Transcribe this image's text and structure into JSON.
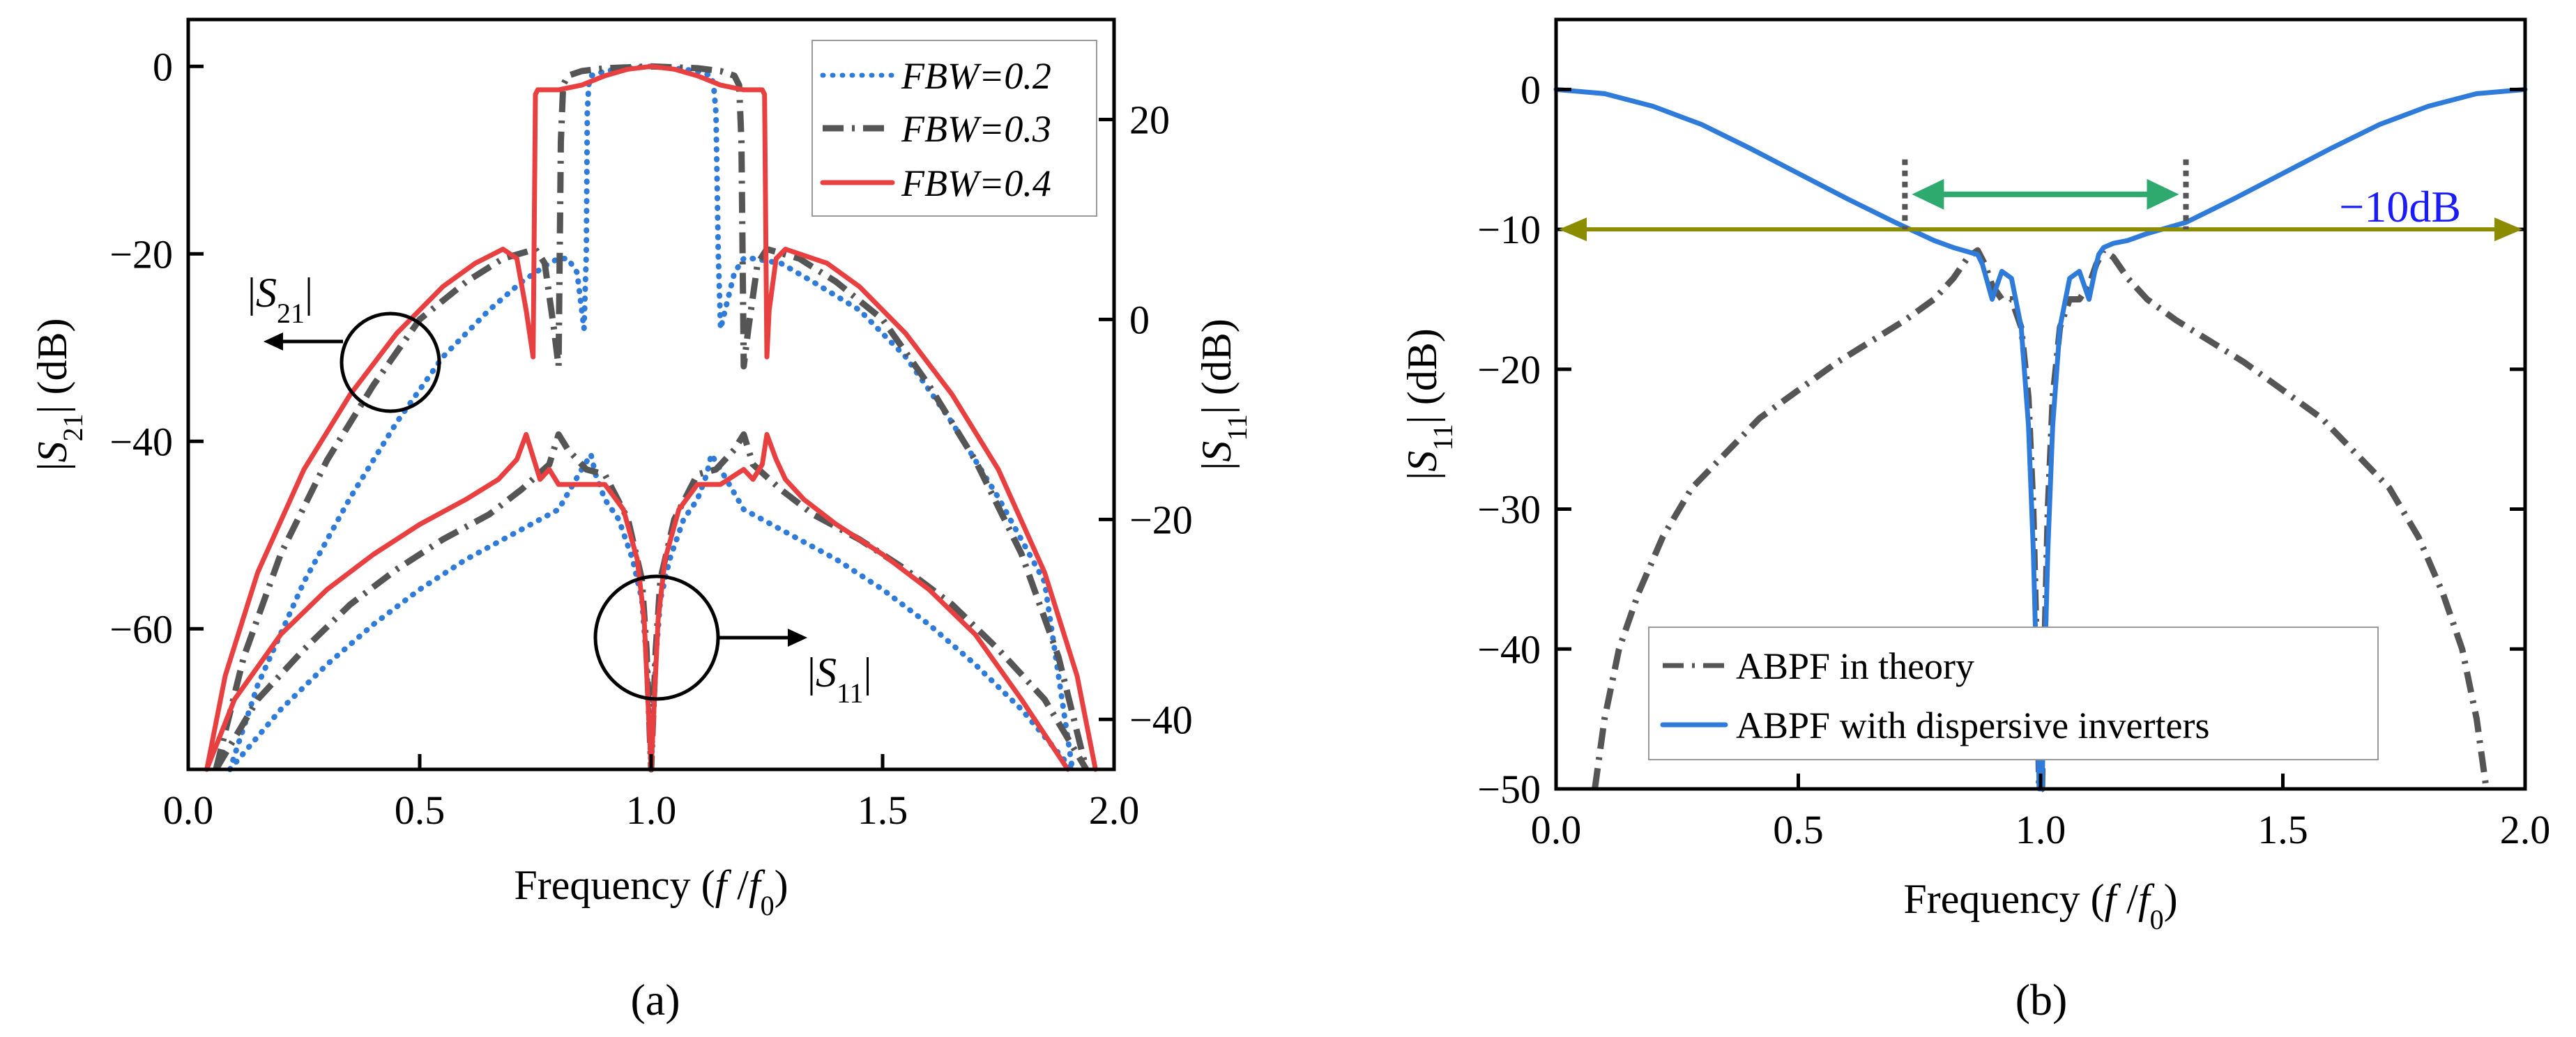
{
  "figure": {
    "panel_a_label": "(a)",
    "panel_b_label": "(b)"
  },
  "chart_data": [
    {
      "type": "line",
      "panel": "a",
      "title": "",
      "xlabel": "Frequency (f / f0)",
      "ylabel": "|S21| (dB)",
      "ylabel_right": "|S11| (dB)",
      "xlim": [
        0.0,
        2.0
      ],
      "ylim": [
        -75,
        5
      ],
      "ylim_right": [
        -45,
        30
      ],
      "x_ticks": [
        "0.0",
        "0.5",
        "1.0",
        "1.5",
        "2.0"
      ],
      "y_ticks": [
        "0",
        "−20",
        "−40",
        "−60"
      ],
      "y_ticks_right": [
        "20",
        "0",
        "−20",
        "−40"
      ],
      "legend_position": "top-right",
      "series": [
        {
          "name": "FBW=0.2",
          "label_prefix": "FBW",
          "label_value": "=0.2",
          "color": "#2f7bd9",
          "style": "dotted",
          "S21_x": [
            0.09,
            0.15,
            0.25,
            0.35,
            0.45,
            0.55,
            0.65,
            0.72,
            0.78,
            0.8,
            0.82,
            0.84,
            0.85,
            0.855,
            0.86,
            0.862,
            0.865,
            0.87,
            0.9,
            0.95,
            1.0,
            1.05,
            1.1,
            1.13,
            1.135,
            1.14,
            1.145,
            1.15,
            1.16,
            1.18,
            1.2,
            1.22,
            1.28,
            1.35,
            1.45,
            1.55,
            1.65,
            1.75,
            1.85,
            1.91
          ],
          "S21_y": [
            -75,
            -66,
            -55,
            -46,
            -38,
            -31,
            -26,
            -23,
            -21,
            -20.5,
            -20.5,
            -22,
            -26,
            -28,
            -20,
            -5,
            -2,
            -1,
            -0.5,
            -0.2,
            0,
            -0.2,
            -0.5,
            -1,
            -2,
            -5,
            -20,
            -28,
            -26,
            -22,
            -20.5,
            -20.5,
            -21,
            -23,
            -26,
            -31,
            -38,
            -46,
            -55,
            -75
          ],
          "S11_x": [
            0.09,
            0.2,
            0.3,
            0.4,
            0.5,
            0.6,
            0.7,
            0.8,
            0.85,
            0.87,
            0.88,
            0.9,
            0.93,
            0.96,
            0.98,
            0.99,
            1.0,
            1.01,
            1.02,
            1.04,
            1.07,
            1.1,
            1.12,
            1.13,
            1.15,
            1.2,
            1.3,
            1.4,
            1.5,
            1.6,
            1.7,
            1.8,
            1.91
          ],
          "S11_y": [
            -45,
            -39,
            -34.5,
            -30.5,
            -27,
            -24,
            -21.5,
            -19,
            -15,
            -13.5,
            -15.5,
            -18,
            -20,
            -24,
            -28,
            -34,
            -45,
            -34,
            -28,
            -24,
            -20,
            -18,
            -15.5,
            -13.5,
            -15,
            -19,
            -21.5,
            -24,
            -27,
            -30.5,
            -34.5,
            -39,
            -45
          ]
        },
        {
          "name": "FBW=0.3",
          "label_prefix": "FBW",
          "label_value": "=0.3",
          "color": "#555555",
          "style": "dashdot",
          "S21_x": [
            0.06,
            0.12,
            0.2,
            0.3,
            0.4,
            0.5,
            0.6,
            0.68,
            0.75,
            0.77,
            0.79,
            0.8,
            0.805,
            0.81,
            0.82,
            0.85,
            0.9,
            0.95,
            1.0,
            1.05,
            1.1,
            1.15,
            1.18,
            1.19,
            1.195,
            1.2,
            1.21,
            1.23,
            1.25,
            1.32,
            1.4,
            1.5,
            1.6,
            1.7,
            1.8,
            1.88,
            1.94
          ],
          "S21_y": [
            -75,
            -63,
            -52,
            -42,
            -34,
            -27,
            -23,
            -20.5,
            -19.5,
            -21,
            -28,
            -32,
            -8,
            -2,
            -1,
            -0.5,
            -0.2,
            -0.1,
            0,
            -0.1,
            -0.2,
            -0.5,
            -1,
            -2,
            -8,
            -32,
            -28,
            -21,
            -19.5,
            -20.5,
            -23,
            -27,
            -34,
            -42,
            -52,
            -63,
            -75
          ],
          "S11_x": [
            0.06,
            0.15,
            0.25,
            0.35,
            0.45,
            0.55,
            0.65,
            0.72,
            0.78,
            0.8,
            0.82,
            0.86,
            0.9,
            0.95,
            0.98,
            0.99,
            1.0,
            1.01,
            1.02,
            1.05,
            1.1,
            1.14,
            1.18,
            1.2,
            1.22,
            1.28,
            1.35,
            1.45,
            1.55,
            1.65,
            1.75,
            1.85,
            1.94
          ],
          "S11_y": [
            -45,
            -38,
            -33,
            -28.5,
            -25,
            -22,
            -19.5,
            -17,
            -14.5,
            -11.5,
            -13,
            -15,
            -15.5,
            -20,
            -26,
            -33,
            -45,
            -33,
            -26,
            -20,
            -15.5,
            -15,
            -13,
            -11.5,
            -14.5,
            -17,
            -19.5,
            -22,
            -25,
            -28.5,
            -33,
            -38,
            -45
          ]
        },
        {
          "name": "FBW=0.4",
          "label_prefix": "FBW",
          "label_value": "=0.4",
          "color": "#e84040",
          "style": "solid",
          "S21_x": [
            0.04,
            0.08,
            0.15,
            0.25,
            0.35,
            0.45,
            0.55,
            0.62,
            0.68,
            0.71,
            0.73,
            0.745,
            0.75,
            0.755,
            0.76,
            0.8,
            0.85,
            0.9,
            0.95,
            1.0,
            1.05,
            1.1,
            1.15,
            1.2,
            1.24,
            1.245,
            1.25,
            1.255,
            1.27,
            1.29,
            1.32,
            1.38,
            1.45,
            1.55,
            1.65,
            1.75,
            1.85,
            1.92,
            1.96
          ],
          "S21_y": [
            -75,
            -65,
            -54,
            -43,
            -35,
            -28.5,
            -23.5,
            -21,
            -19.5,
            -20.5,
            -26,
            -31,
            -3,
            -2.5,
            -2.5,
            -2.5,
            -2,
            -1,
            -0.3,
            0,
            -0.3,
            -1,
            -2,
            -2.5,
            -2.5,
            -3,
            -31,
            -26,
            -20.5,
            -19.5,
            -20,
            -21,
            -23.5,
            -28.5,
            -35,
            -43,
            -54,
            -65,
            -75
          ],
          "S11_x": [
            0.04,
            0.1,
            0.2,
            0.3,
            0.4,
            0.5,
            0.6,
            0.67,
            0.71,
            0.73,
            0.75,
            0.76,
            0.78,
            0.8,
            0.85,
            0.9,
            0.94,
            0.97,
            0.985,
            0.995,
            1.0,
            1.005,
            1.015,
            1.03,
            1.06,
            1.1,
            1.15,
            1.2,
            1.22,
            1.24,
            1.25,
            1.27,
            1.29,
            1.33,
            1.4,
            1.5,
            1.6,
            1.7,
            1.8,
            1.9,
            1.96
          ],
          "S11_y": [
            -45,
            -38,
            -31.5,
            -27,
            -23.5,
            -20.5,
            -18,
            -16,
            -14,
            -11.5,
            -14.5,
            -16,
            -15,
            -16.5,
            -16.5,
            -16.5,
            -19,
            -24,
            -30,
            -40,
            -45,
            -40,
            -30,
            -24,
            -19,
            -16.5,
            -16.5,
            -15,
            -16,
            -14.5,
            -11.5,
            -14,
            -16,
            -18,
            -20.5,
            -23.5,
            -27,
            -31.5,
            -38,
            -45
          ]
        }
      ],
      "annotations": {
        "s21_arrow_label": "|S21|",
        "s11_arrow_label": "|S11|"
      }
    },
    {
      "type": "line",
      "panel": "b",
      "title": "",
      "xlabel": "Frequency (f / f0)",
      "ylabel": "|S11| (dB)",
      "xlim": [
        0.0,
        2.0
      ],
      "ylim": [
        -50,
        5
      ],
      "x_ticks": [
        "0.0",
        "0.5",
        "1.0",
        "1.5",
        "2.0"
      ],
      "y_ticks": [
        "0",
        "−10",
        "−20",
        "−30",
        "−40",
        "−50"
      ],
      "legend_position": "bottom-right",
      "threshold_label": "−10dB",
      "threshold_db": -10,
      "bandwidth_marker_x": [
        0.72,
        1.3
      ],
      "bandwidth_marker_y": -7.5,
      "series": [
        {
          "name": "ABPF in theory",
          "color": "#555555",
          "style": "dashdot",
          "x": [
            0.08,
            0.1,
            0.13,
            0.17,
            0.22,
            0.28,
            0.35,
            0.42,
            0.5,
            0.58,
            0.65,
            0.72,
            0.78,
            0.82,
            0.85,
            0.87,
            0.885,
            0.9,
            0.92,
            0.94,
            0.96,
            0.975,
            0.985,
            0.992,
            0.997,
            1.0,
            1.003,
            1.008,
            1.015,
            1.025,
            1.04,
            1.06,
            1.08,
            1.1,
            1.115,
            1.13,
            1.15,
            1.18,
            1.22,
            1.28,
            1.35,
            1.42,
            1.5,
            1.58,
            1.65,
            1.72,
            1.78,
            1.83,
            1.87,
            1.9,
            1.92
          ],
          "y": [
            -50,
            -45,
            -40,
            -36,
            -32,
            -28.5,
            -26,
            -23.5,
            -21.5,
            -19.5,
            -18,
            -16.5,
            -15,
            -13.5,
            -12,
            -11.5,
            -12.5,
            -14,
            -15,
            -15,
            -17,
            -22,
            -30,
            -40,
            -50,
            -50,
            -50,
            -40,
            -30,
            -22,
            -17,
            -15,
            -15,
            -14,
            -12.5,
            -11.5,
            -12,
            -13.5,
            -15,
            -16.5,
            -18,
            -19.5,
            -21.5,
            -23.5,
            -26,
            -28.5,
            -32,
            -36,
            -40,
            -45,
            -50
          ]
        },
        {
          "name": "ABPF with dispersive inverters",
          "color": "#2f7bd9",
          "style": "solid",
          "x": [
            0.0,
            0.1,
            0.2,
            0.3,
            0.4,
            0.5,
            0.6,
            0.7,
            0.78,
            0.82,
            0.85,
            0.87,
            0.88,
            0.9,
            0.92,
            0.94,
            0.96,
            0.975,
            0.985,
            0.992,
            0.997,
            1.0,
            1.003,
            1.008,
            1.015,
            1.025,
            1.04,
            1.06,
            1.08,
            1.1,
            1.115,
            1.12,
            1.13,
            1.15,
            1.18,
            1.22,
            1.3,
            1.4,
            1.5,
            1.6,
            1.7,
            1.8,
            1.9,
            2.0
          ],
          "y": [
            0,
            -0.3,
            -1.2,
            -2.5,
            -4.2,
            -6,
            -7.8,
            -9.5,
            -10.8,
            -11.3,
            -11.6,
            -11.8,
            -12.5,
            -15,
            -13,
            -13.5,
            -17,
            -24,
            -33,
            -42,
            -50,
            -50,
            -50,
            -42,
            -33,
            -24,
            -17,
            -13.5,
            -13,
            -15,
            -12.5,
            -11.8,
            -11.3,
            -11,
            -10.8,
            -10.3,
            -9.5,
            -7.8,
            -6,
            -4.2,
            -2.5,
            -1.2,
            -0.3,
            0
          ]
        }
      ]
    }
  ]
}
